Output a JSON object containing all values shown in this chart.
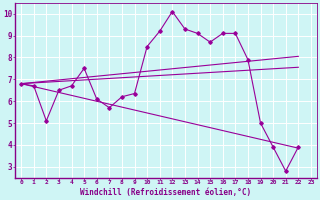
{
  "xlabel": "Windchill (Refroidissement éolien,°C)",
  "bg_color": "#cff5f5",
  "line_color": "#990099",
  "grid_color": "#aadddd",
  "axis_color": "#880088",
  "xlim": [
    -0.5,
    23.5
  ],
  "ylim": [
    2.5,
    10.5
  ],
  "xticks": [
    0,
    1,
    2,
    3,
    4,
    5,
    6,
    7,
    8,
    9,
    10,
    11,
    12,
    13,
    14,
    15,
    16,
    17,
    18,
    19,
    20,
    21,
    22,
    23
  ],
  "yticks": [
    3,
    4,
    5,
    6,
    7,
    8,
    9,
    10
  ],
  "series1_x": [
    0,
    1,
    2,
    3,
    4,
    5,
    6,
    7,
    8,
    9,
    10,
    11,
    12,
    13,
    14,
    15,
    16,
    17,
    18,
    19,
    20,
    21,
    22
  ],
  "series1_y": [
    6.8,
    6.7,
    5.1,
    6.5,
    6.7,
    7.5,
    6.1,
    5.7,
    6.2,
    6.35,
    8.5,
    9.2,
    10.1,
    9.3,
    9.1,
    8.7,
    9.1,
    9.1,
    7.9,
    5.0,
    3.9,
    2.8,
    3.9
  ],
  "line1_x": [
    0,
    22
  ],
  "line1_y": [
    6.8,
    8.05
  ],
  "line2_x": [
    0,
    22
  ],
  "line2_y": [
    6.8,
    7.55
  ],
  "line3_x": [
    0,
    22
  ],
  "line3_y": [
    6.8,
    3.85
  ]
}
